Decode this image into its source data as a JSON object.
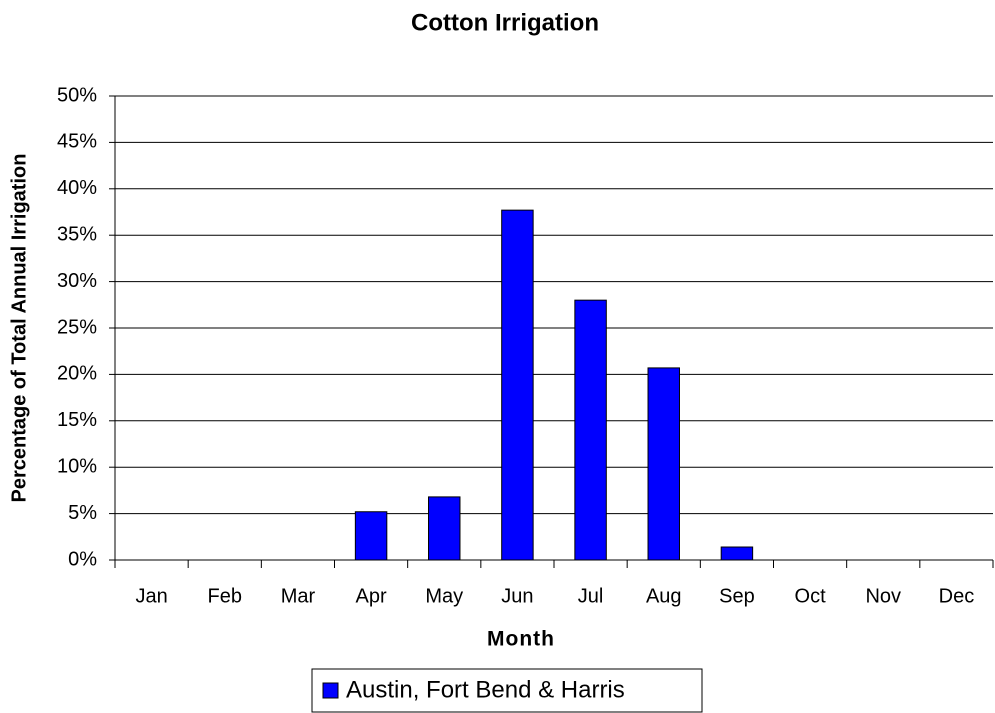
{
  "chart_data": {
    "type": "bar",
    "title": "Cotton Irrigation",
    "x_label": "Month",
    "y_label": "Percentage of Total Annual Irrigation",
    "categories": [
      "Jan",
      "Feb",
      "Mar",
      "Apr",
      "May",
      "Jun",
      "Jul",
      "Aug",
      "Sep",
      "Oct",
      "Nov",
      "Dec"
    ],
    "series": [
      {
        "name": "Austin, Fort Bend & Harris",
        "color": "#0000ff",
        "values": [
          0,
          0,
          0,
          5.2,
          6.8,
          37.7,
          28,
          20.7,
          1.4,
          0,
          0,
          0
        ]
      }
    ],
    "ylim": [
      0,
      50
    ],
    "yticks": [
      {
        "value": 0,
        "label": "0%"
      },
      {
        "value": 5,
        "label": "5%"
      },
      {
        "value": 10,
        "label": "10%"
      },
      {
        "value": 15,
        "label": "15%"
      },
      {
        "value": 20,
        "label": "20%"
      },
      {
        "value": 25,
        "label": "25%"
      },
      {
        "value": 30,
        "label": "30%"
      },
      {
        "value": 35,
        "label": "35%"
      },
      {
        "value": 40,
        "label": "40%"
      },
      {
        "value": 45,
        "label": "45%"
      },
      {
        "value": 50,
        "label": "50%"
      }
    ],
    "grid": true
  }
}
